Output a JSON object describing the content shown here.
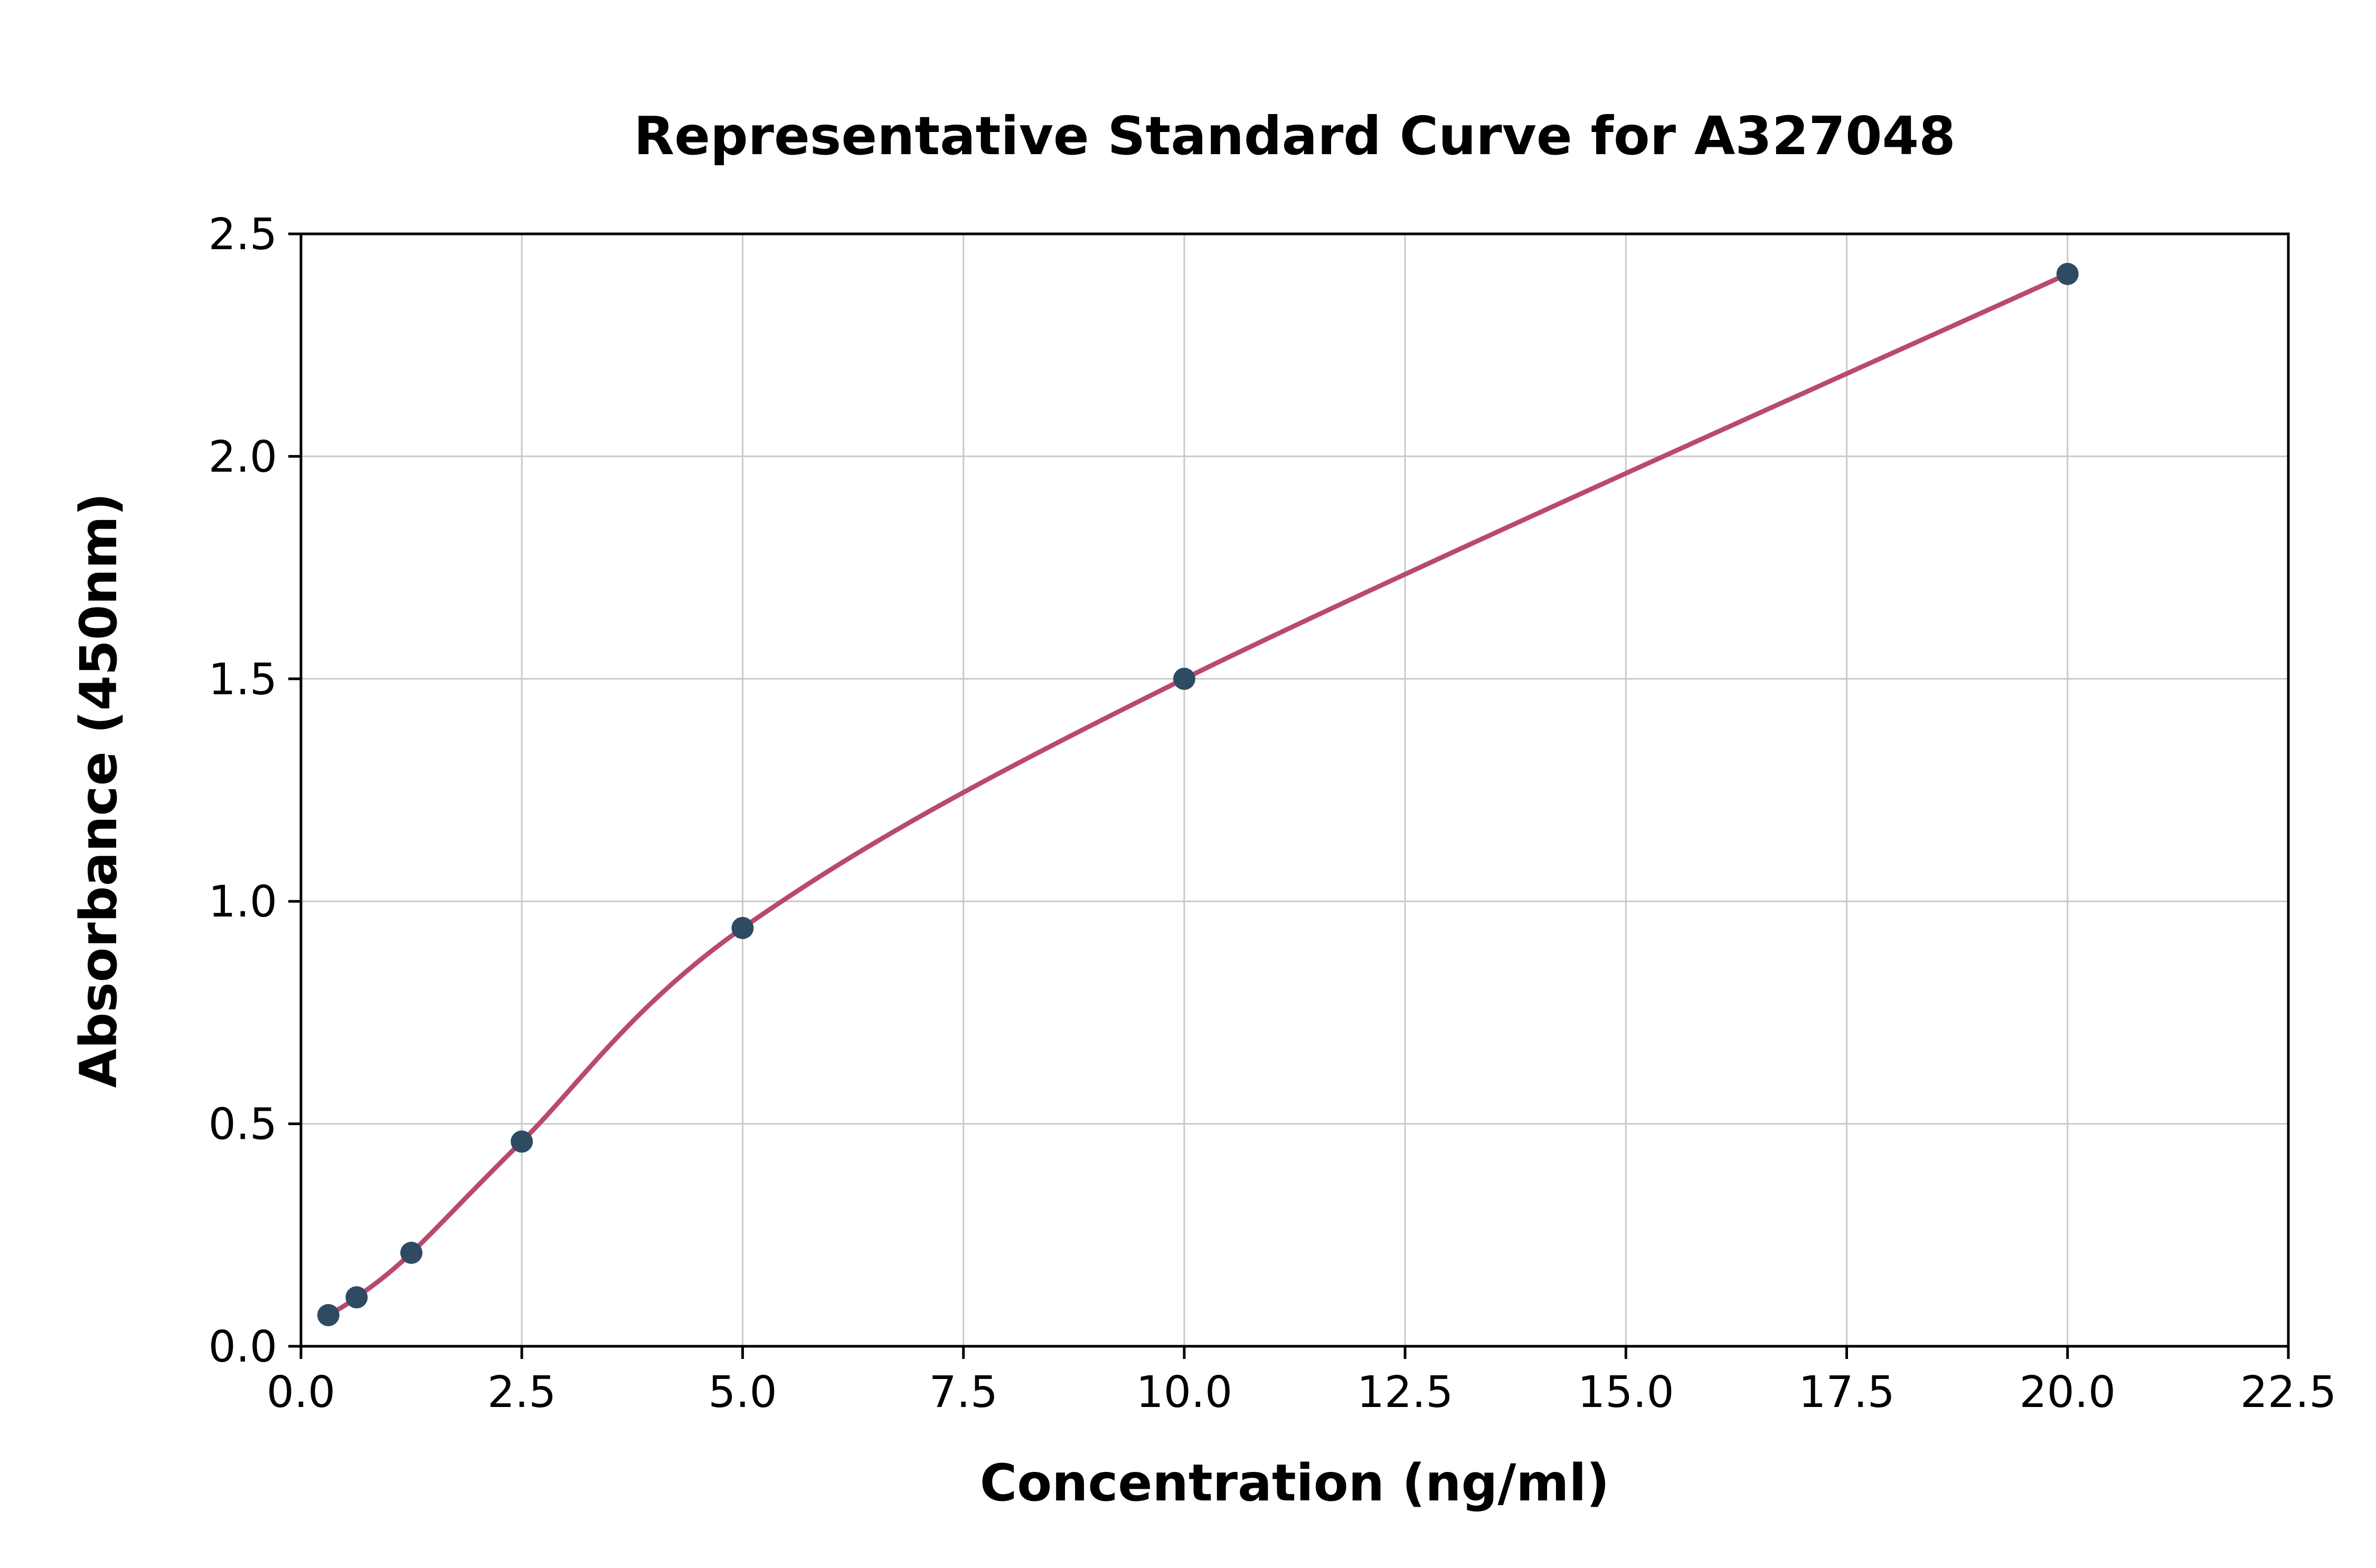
{
  "chart_data": {
    "type": "scatter",
    "title": "Representative Standard Curve for A327048",
    "xlabel": "Concentration (ng/ml)",
    "ylabel": "Absorbance (450nm)",
    "x": [
      0.31,
      0.63,
      1.25,
      2.5,
      5.0,
      10.0,
      20.0
    ],
    "y": [
      0.07,
      0.11,
      0.21,
      0.46,
      0.94,
      1.5,
      2.41
    ],
    "xlim": [
      0,
      22.5
    ],
    "ylim": [
      0,
      2.5
    ],
    "xticks": [
      0.0,
      2.5,
      5.0,
      7.5,
      10.0,
      12.5,
      15.0,
      17.5,
      20.0,
      22.5
    ],
    "yticks": [
      0.0,
      0.5,
      1.0,
      1.5,
      2.0,
      2.5
    ],
    "tick_decimals": 1,
    "grid": true,
    "legend": "none",
    "curve": "smooth fit through points",
    "curve_color": "#b94a6d",
    "point_color": "#2f4b63",
    "grid_color": "#c9c9c9",
    "spine_color": "#000000",
    "background_color": "#ffffff"
  }
}
